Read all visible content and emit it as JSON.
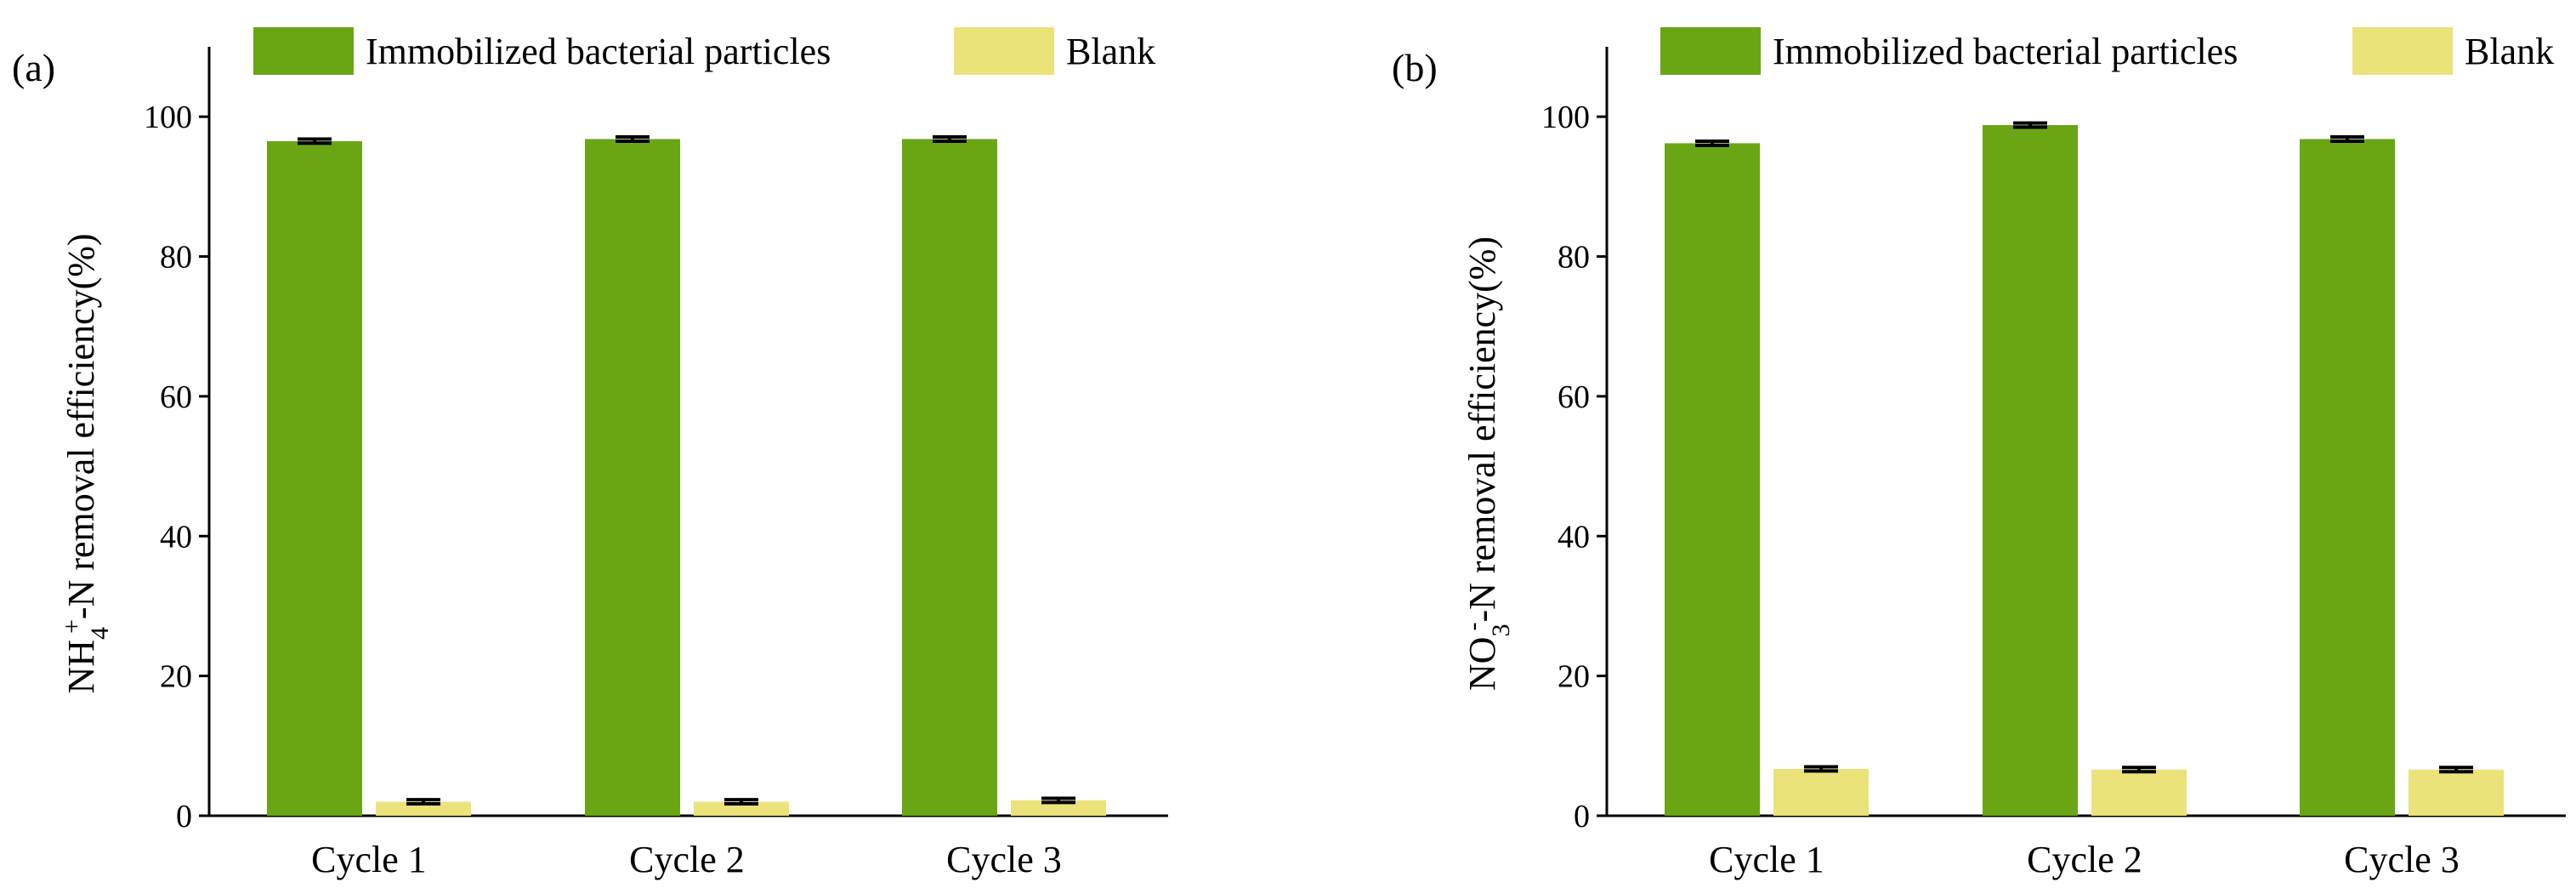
{
  "chart_data": [
    {
      "type": "bar",
      "panel_label": "(a)",
      "categories": [
        "Cycle 1",
        "Cycle 2",
        "Cycle 3"
      ],
      "series": [
        {
          "name": "Immobilized bacterial particles",
          "color": "#6aa614",
          "values": [
            96.5,
            96.8,
            96.8
          ],
          "errors": [
            0.3,
            0.3,
            0.3
          ]
        },
        {
          "name": "Blank",
          "color": "#ebe27a",
          "values": [
            2.0,
            2.0,
            2.2
          ],
          "errors": [
            0.3,
            0.3,
            0.3
          ]
        }
      ],
      "ylabel": {
        "base": "NH",
        "sub": "4",
        "sup": "+",
        "rest": "-N removal efficiency(%)"
      },
      "xlabel": "",
      "ylim": [
        0,
        110
      ],
      "yticks": [
        "0",
        "20",
        "40",
        "60",
        "80",
        "100"
      ],
      "legend": "top"
    },
    {
      "type": "bar",
      "panel_label": "(b)",
      "categories": [
        "Cycle 1",
        "Cycle 2",
        "Cycle 3"
      ],
      "series": [
        {
          "name": "Immobilized bacterial particles",
          "color": "#6aa614",
          "values": [
            96.2,
            98.8,
            96.8
          ],
          "errors": [
            0.3,
            0.3,
            0.3
          ]
        },
        {
          "name": "Blank",
          "color": "#ebe27a",
          "values": [
            6.7,
            6.6,
            6.6
          ],
          "errors": [
            0.3,
            0.3,
            0.3
          ]
        }
      ],
      "ylabel": {
        "base": "NO",
        "sub": "3",
        "sup": "-",
        "rest": "-N removal efficiency(%)"
      },
      "xlabel": "",
      "ylim": [
        0,
        110
      ],
      "yticks": [
        "0",
        "20",
        "40",
        "60",
        "80",
        "100"
      ],
      "legend": "top"
    }
  ]
}
